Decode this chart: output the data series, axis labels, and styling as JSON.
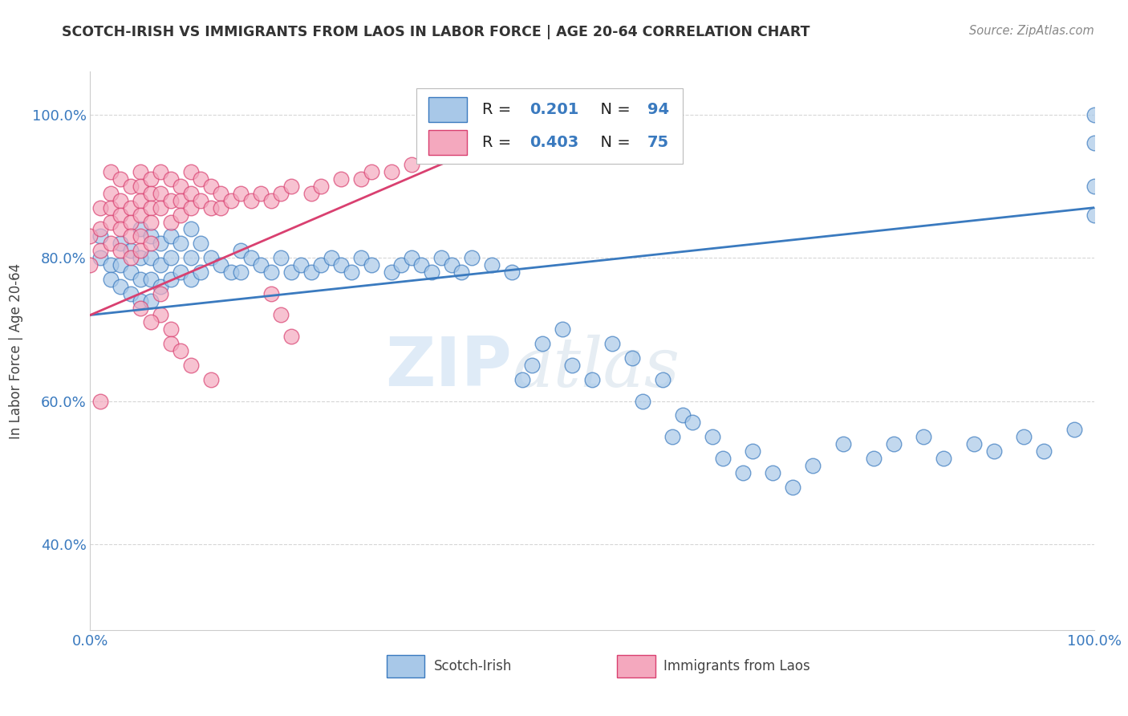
{
  "title": "SCOTCH-IRISH VS IMMIGRANTS FROM LAOS IN LABOR FORCE | AGE 20-64 CORRELATION CHART",
  "source": "Source: ZipAtlas.com",
  "ylabel": "In Labor Force | Age 20-64",
  "yticks": [
    "40.0%",
    "60.0%",
    "80.0%",
    "100.0%"
  ],
  "ytick_vals": [
    0.4,
    0.6,
    0.8,
    1.0
  ],
  "xlim": [
    0.0,
    1.0
  ],
  "ylim": [
    0.28,
    1.06
  ],
  "blue_color": "#a8c8e8",
  "pink_color": "#f4a8be",
  "blue_line_color": "#3a7abf",
  "pink_line_color": "#d94070",
  "R_blue": 0.201,
  "N_blue": 94,
  "R_pink": 0.403,
  "N_pink": 75,
  "blue_scatter_x": [
    0.01,
    0.01,
    0.02,
    0.02,
    0.03,
    0.03,
    0.03,
    0.04,
    0.04,
    0.04,
    0.05,
    0.05,
    0.05,
    0.05,
    0.06,
    0.06,
    0.06,
    0.06,
    0.07,
    0.07,
    0.07,
    0.08,
    0.08,
    0.08,
    0.09,
    0.09,
    0.1,
    0.1,
    0.1,
    0.11,
    0.11,
    0.12,
    0.13,
    0.14,
    0.15,
    0.15,
    0.16,
    0.17,
    0.18,
    0.19,
    0.2,
    0.21,
    0.22,
    0.23,
    0.24,
    0.25,
    0.26,
    0.27,
    0.28,
    0.3,
    0.31,
    0.32,
    0.33,
    0.34,
    0.35,
    0.36,
    0.37,
    0.38,
    0.4,
    0.42,
    0.43,
    0.44,
    0.45,
    0.47,
    0.48,
    0.5,
    0.52,
    0.54,
    0.55,
    0.57,
    0.58,
    0.59,
    0.6,
    0.62,
    0.63,
    0.65,
    0.66,
    0.68,
    0.7,
    0.72,
    0.75,
    0.78,
    0.8,
    0.83,
    0.85,
    0.88,
    0.9,
    0.93,
    0.95,
    0.98,
    1.0,
    1.0,
    1.0,
    1.0
  ],
  "blue_scatter_y": [
    0.83,
    0.8,
    0.79,
    0.77,
    0.82,
    0.79,
    0.76,
    0.81,
    0.78,
    0.75,
    0.84,
    0.8,
    0.77,
    0.74,
    0.83,
    0.8,
    0.77,
    0.74,
    0.82,
    0.79,
    0.76,
    0.83,
    0.8,
    0.77,
    0.82,
    0.78,
    0.84,
    0.8,
    0.77,
    0.82,
    0.78,
    0.8,
    0.79,
    0.78,
    0.81,
    0.78,
    0.8,
    0.79,
    0.78,
    0.8,
    0.78,
    0.79,
    0.78,
    0.79,
    0.8,
    0.79,
    0.78,
    0.8,
    0.79,
    0.78,
    0.79,
    0.8,
    0.79,
    0.78,
    0.8,
    0.79,
    0.78,
    0.8,
    0.79,
    0.78,
    0.63,
    0.65,
    0.68,
    0.7,
    0.65,
    0.63,
    0.68,
    0.66,
    0.6,
    0.63,
    0.55,
    0.58,
    0.57,
    0.55,
    0.52,
    0.5,
    0.53,
    0.5,
    0.48,
    0.51,
    0.54,
    0.52,
    0.54,
    0.55,
    0.52,
    0.54,
    0.53,
    0.55,
    0.53,
    0.56,
    0.86,
    0.9,
    0.96,
    1.0
  ],
  "pink_scatter_x": [
    0.0,
    0.0,
    0.01,
    0.01,
    0.01,
    0.02,
    0.02,
    0.02,
    0.02,
    0.02,
    0.03,
    0.03,
    0.03,
    0.03,
    0.03,
    0.04,
    0.04,
    0.04,
    0.04,
    0.04,
    0.05,
    0.05,
    0.05,
    0.05,
    0.05,
    0.05,
    0.06,
    0.06,
    0.06,
    0.06,
    0.06,
    0.07,
    0.07,
    0.07,
    0.08,
    0.08,
    0.08,
    0.09,
    0.09,
    0.09,
    0.1,
    0.1,
    0.1,
    0.11,
    0.11,
    0.12,
    0.12,
    0.13,
    0.13,
    0.14,
    0.15,
    0.16,
    0.17,
    0.18,
    0.19,
    0.2,
    0.22,
    0.23,
    0.25,
    0.27,
    0.28,
    0.3,
    0.32,
    0.18,
    0.19,
    0.2,
    0.07,
    0.07,
    0.08,
    0.08,
    0.05,
    0.06,
    0.09,
    0.1,
    0.12
  ],
  "pink_scatter_y": [
    0.83,
    0.79,
    0.87,
    0.84,
    0.81,
    0.92,
    0.89,
    0.87,
    0.85,
    0.82,
    0.91,
    0.88,
    0.86,
    0.84,
    0.81,
    0.9,
    0.87,
    0.85,
    0.83,
    0.8,
    0.92,
    0.9,
    0.88,
    0.86,
    0.83,
    0.81,
    0.91,
    0.89,
    0.87,
    0.85,
    0.82,
    0.92,
    0.89,
    0.87,
    0.91,
    0.88,
    0.85,
    0.9,
    0.88,
    0.86,
    0.92,
    0.89,
    0.87,
    0.91,
    0.88,
    0.9,
    0.87,
    0.89,
    0.87,
    0.88,
    0.89,
    0.88,
    0.89,
    0.88,
    0.89,
    0.9,
    0.89,
    0.9,
    0.91,
    0.91,
    0.92,
    0.92,
    0.93,
    0.75,
    0.72,
    0.69,
    0.75,
    0.72,
    0.7,
    0.68,
    0.73,
    0.71,
    0.67,
    0.65,
    0.63
  ],
  "pink_outlier_x": [
    0.01
  ],
  "pink_outlier_y": [
    0.6
  ],
  "watermark_zip": "ZIP",
  "watermark_atlas": "atlas",
  "grid_color": "#cccccc",
  "blue_line_y0": 0.72,
  "blue_line_y1": 0.87,
  "pink_line_x0": 0.0,
  "pink_line_x1": 0.44,
  "pink_line_y0": 0.72,
  "pink_line_y1": 0.985
}
